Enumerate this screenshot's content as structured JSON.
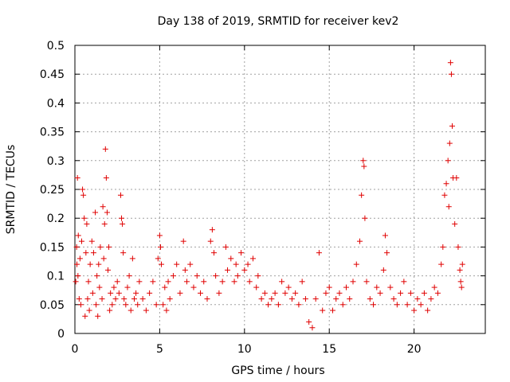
{
  "chart_data": {
    "type": "scatter",
    "title": "Day 138 of 2019, SRMTID for receiver kev2",
    "xlabel": "GPS time / hours",
    "ylabel": "SRMTID / TECUs",
    "xlim": [
      0,
      24.2
    ],
    "ylim": [
      0,
      0.5
    ],
    "x_ticks": [
      0,
      5,
      10,
      15,
      20
    ],
    "x_tick_labels": [
      "0",
      "5",
      "10",
      "15",
      "20"
    ],
    "y_ticks": [
      0,
      0.05,
      0.1,
      0.15,
      0.2,
      0.25,
      0.3,
      0.35,
      0.4,
      0.45,
      0.5
    ],
    "y_tick_labels": [
      "0",
      "0.05",
      "0.1",
      "0.15",
      "0.2",
      "0.25",
      "0.3",
      "0.35",
      "0.4",
      "0.45",
      "0.5"
    ],
    "grid": true,
    "marker": "+",
    "color": "#e00000",
    "series": [
      {
        "name": "SRMTID",
        "points": [
          [
            0.05,
            0.09
          ],
          [
            0.1,
            0.15
          ],
          [
            0.12,
            0.12
          ],
          [
            0.15,
            0.27
          ],
          [
            0.18,
            0.1
          ],
          [
            0.2,
            0.17
          ],
          [
            0.25,
            0.06
          ],
          [
            0.3,
            0.13
          ],
          [
            0.35,
            0.05
          ],
          [
            0.4,
            0.16
          ],
          [
            0.45,
            0.25
          ],
          [
            0.5,
            0.24
          ],
          [
            0.55,
            0.2
          ],
          [
            0.6,
            0.03
          ],
          [
            0.65,
            0.14
          ],
          [
            0.7,
            0.19
          ],
          [
            0.75,
            0.06
          ],
          [
            0.8,
            0.09
          ],
          [
            0.85,
            0.04
          ],
          [
            0.9,
            0.12
          ],
          [
            1.0,
            0.16
          ],
          [
            1.05,
            0.07
          ],
          [
            1.1,
            0.14
          ],
          [
            1.2,
            0.21
          ],
          [
            1.25,
            0.05
          ],
          [
            1.3,
            0.1
          ],
          [
            1.35,
            0.03
          ],
          [
            1.4,
            0.12
          ],
          [
            1.45,
            0.08
          ],
          [
            1.5,
            0.15
          ],
          [
            1.6,
            0.06
          ],
          [
            1.65,
            0.22
          ],
          [
            1.7,
            0.13
          ],
          [
            1.75,
            0.19
          ],
          [
            1.8,
            0.32
          ],
          [
            1.85,
            0.27
          ],
          [
            1.9,
            0.21
          ],
          [
            1.95,
            0.11
          ],
          [
            2.0,
            0.15
          ],
          [
            2.05,
            0.04
          ],
          [
            2.1,
            0.07
          ],
          [
            2.2,
            0.05
          ],
          [
            2.3,
            0.08
          ],
          [
            2.4,
            0.06
          ],
          [
            2.5,
            0.09
          ],
          [
            2.6,
            0.07
          ],
          [
            2.7,
            0.24
          ],
          [
            2.75,
            0.2
          ],
          [
            2.8,
            0.19
          ],
          [
            2.85,
            0.14
          ],
          [
            2.9,
            0.06
          ],
          [
            3.0,
            0.05
          ],
          [
            3.1,
            0.08
          ],
          [
            3.2,
            0.1
          ],
          [
            3.3,
            0.04
          ],
          [
            3.4,
            0.13
          ],
          [
            3.5,
            0.06
          ],
          [
            3.6,
            0.07
          ],
          [
            3.7,
            0.05
          ],
          [
            3.8,
            0.09
          ],
          [
            4.0,
            0.06
          ],
          [
            4.2,
            0.04
          ],
          [
            4.4,
            0.07
          ],
          [
            4.6,
            0.09
          ],
          [
            4.8,
            0.05
          ],
          [
            4.9,
            0.13
          ],
          [
            5.0,
            0.17
          ],
          [
            5.05,
            0.15
          ],
          [
            5.1,
            0.12
          ],
          [
            5.2,
            0.05
          ],
          [
            5.3,
            0.08
          ],
          [
            5.4,
            0.04
          ],
          [
            5.5,
            0.09
          ],
          [
            5.6,
            0.06
          ],
          [
            5.8,
            0.1
          ],
          [
            6.0,
            0.12
          ],
          [
            6.2,
            0.07
          ],
          [
            6.4,
            0.16
          ],
          [
            6.5,
            0.11
          ],
          [
            6.6,
            0.09
          ],
          [
            6.8,
            0.12
          ],
          [
            7.0,
            0.08
          ],
          [
            7.2,
            0.1
          ],
          [
            7.4,
            0.07
          ],
          [
            7.6,
            0.09
          ],
          [
            7.8,
            0.06
          ],
          [
            8.0,
            0.16
          ],
          [
            8.1,
            0.18
          ],
          [
            8.2,
            0.14
          ],
          [
            8.3,
            0.1
          ],
          [
            8.5,
            0.07
          ],
          [
            8.7,
            0.09
          ],
          [
            8.9,
            0.15
          ],
          [
            9.0,
            0.11
          ],
          [
            9.2,
            0.13
          ],
          [
            9.4,
            0.09
          ],
          [
            9.5,
            0.12
          ],
          [
            9.6,
            0.1
          ],
          [
            9.8,
            0.14
          ],
          [
            10.0,
            0.11
          ],
          [
            10.2,
            0.12
          ],
          [
            10.3,
            0.09
          ],
          [
            10.5,
            0.13
          ],
          [
            10.7,
            0.08
          ],
          [
            10.8,
            0.1
          ],
          [
            11.0,
            0.06
          ],
          [
            11.2,
            0.07
          ],
          [
            11.4,
            0.05
          ],
          [
            11.6,
            0.06
          ],
          [
            11.8,
            0.07
          ],
          [
            12.0,
            0.05
          ],
          [
            12.2,
            0.09
          ],
          [
            12.4,
            0.07
          ],
          [
            12.6,
            0.08
          ],
          [
            12.8,
            0.06
          ],
          [
            13.0,
            0.07
          ],
          [
            13.2,
            0.05
          ],
          [
            13.4,
            0.09
          ],
          [
            13.6,
            0.06
          ],
          [
            13.8,
            0.02
          ],
          [
            14.0,
            0.01
          ],
          [
            14.2,
            0.06
          ],
          [
            14.4,
            0.14
          ],
          [
            14.6,
            0.04
          ],
          [
            14.8,
            0.07
          ],
          [
            15.0,
            0.08
          ],
          [
            15.2,
            0.04
          ],
          [
            15.4,
            0.06
          ],
          [
            15.6,
            0.07
          ],
          [
            15.8,
            0.05
          ],
          [
            16.0,
            0.08
          ],
          [
            16.2,
            0.06
          ],
          [
            16.4,
            0.09
          ],
          [
            16.6,
            0.12
          ],
          [
            16.8,
            0.16
          ],
          [
            16.9,
            0.24
          ],
          [
            17.0,
            0.3
          ],
          [
            17.05,
            0.29
          ],
          [
            17.1,
            0.2
          ],
          [
            17.2,
            0.09
          ],
          [
            17.4,
            0.06
          ],
          [
            17.6,
            0.05
          ],
          [
            17.8,
            0.08
          ],
          [
            18.0,
            0.07
          ],
          [
            18.2,
            0.11
          ],
          [
            18.3,
            0.17
          ],
          [
            18.4,
            0.14
          ],
          [
            18.6,
            0.08
          ],
          [
            18.8,
            0.06
          ],
          [
            19.0,
            0.05
          ],
          [
            19.2,
            0.07
          ],
          [
            19.4,
            0.09
          ],
          [
            19.6,
            0.05
          ],
          [
            19.8,
            0.07
          ],
          [
            20.0,
            0.04
          ],
          [
            20.2,
            0.06
          ],
          [
            20.4,
            0.05
          ],
          [
            20.6,
            0.07
          ],
          [
            20.8,
            0.04
          ],
          [
            21.0,
            0.06
          ],
          [
            21.2,
            0.08
          ],
          [
            21.4,
            0.07
          ],
          [
            21.6,
            0.12
          ],
          [
            21.7,
            0.15
          ],
          [
            21.8,
            0.24
          ],
          [
            21.9,
            0.26
          ],
          [
            22.0,
            0.3
          ],
          [
            22.05,
            0.22
          ],
          [
            22.1,
            0.33
          ],
          [
            22.15,
            0.47
          ],
          [
            22.2,
            0.45
          ],
          [
            22.25,
            0.36
          ],
          [
            22.3,
            0.27
          ],
          [
            22.4,
            0.19
          ],
          [
            22.5,
            0.27
          ],
          [
            22.6,
            0.15
          ],
          [
            22.7,
            0.11
          ],
          [
            22.75,
            0.09
          ],
          [
            22.8,
            0.08
          ],
          [
            22.85,
            0.12
          ]
        ]
      }
    ]
  }
}
